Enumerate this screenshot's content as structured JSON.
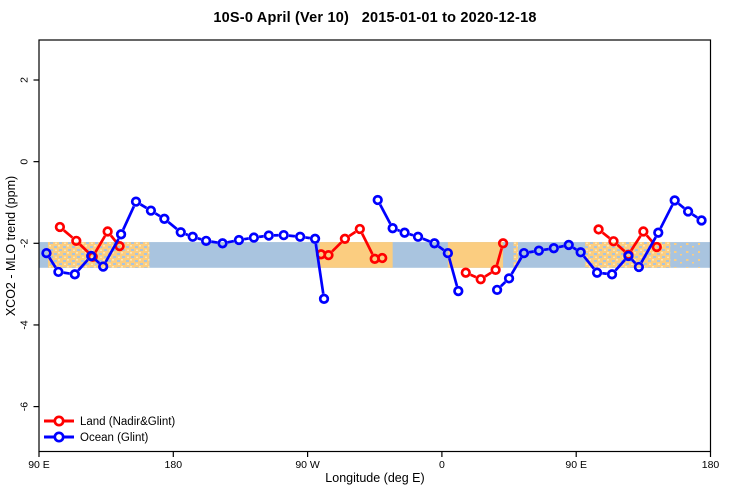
{
  "header": {
    "title": "10S-0 April (Ver 10)   2015-01-01 to 2020-12-18"
  },
  "chart_data": {
    "type": "line",
    "title": "10S-0 April (Ver 10)   2015-01-01 to 2020-12-18",
    "xlabel": "Longitude (deg E)",
    "ylabel": "XCO2 - MLO trend (ppm)",
    "grid": false,
    "legend_position": "bottom-left",
    "x_axis": {
      "min": 90,
      "max": 540,
      "ticks": [
        {
          "lon": 90,
          "label": "90 E"
        },
        {
          "lon": 180,
          "label": "180"
        },
        {
          "lon": 270,
          "label": "90 W"
        },
        {
          "lon": 360,
          "label": "0"
        },
        {
          "lon": 450,
          "label": "90 E"
        },
        {
          "lon": 540,
          "label": "180"
        }
      ]
    },
    "y_axis": {
      "min": -7.1,
      "max": 2.98,
      "ticks": [
        2,
        0,
        -2,
        -4,
        -6
      ]
    },
    "band": {
      "description": "10S-0 latitude strip map: ocean band with land patches",
      "value_top": -1.97,
      "value_bottom": -2.6,
      "ocean_color": "#a9c4df",
      "land_color": "#fbcd80",
      "land_highlight_color": "#fde6b2",
      "land_patches": [
        {
          "from": 96,
          "to": 164,
          "style": "speckled"
        },
        {
          "from": 278,
          "to": 327,
          "style": "solid"
        },
        {
          "from": 364,
          "to": 401,
          "style": "solid"
        },
        {
          "from": 408,
          "to": 411,
          "style": "speckled"
        },
        {
          "from": 456,
          "to": 513,
          "style": "speckled"
        },
        {
          "from": 514,
          "to": 533,
          "style": "sparse"
        }
      ]
    },
    "series": [
      {
        "name": "Land (Nadir&Glint)",
        "color": "#ff0000",
        "segments": [
          [
            [
              104,
              -1.6
            ],
            [
              115,
              -1.94
            ],
            [
              126,
              -2.33
            ],
            [
              136,
              -1.71
            ],
            [
              144,
              -2.07
            ]
          ],
          [
            [
              279,
              -2.27
            ],
            [
              284,
              -2.29
            ],
            [
              295,
              -1.89
            ],
            [
              305,
              -1.65
            ],
            [
              315,
              -2.38
            ],
            [
              320,
              -2.36
            ]
          ],
          [
            [
              376,
              -2.72
            ],
            [
              386,
              -2.88
            ],
            [
              396,
              -2.65
            ],
            [
              401,
              -2.0
            ]
          ],
          [
            [
              465,
              -1.66
            ],
            [
              475,
              -1.95
            ],
            [
              485,
              -2.28
            ],
            [
              495,
              -1.71
            ],
            [
              504,
              -2.09
            ]
          ]
        ]
      },
      {
        "name": "Ocean (Glint)",
        "color": "#0000ff",
        "segments": [
          [
            [
              95,
              -2.24
            ],
            [
              103,
              -2.7
            ],
            [
              114,
              -2.76
            ],
            [
              125,
              -2.31
            ],
            [
              133,
              -2.57
            ],
            [
              145,
              -1.78
            ],
            [
              155,
              -0.98
            ],
            [
              165,
              -1.2
            ],
            [
              174,
              -1.4
            ],
            [
              185,
              -1.73
            ],
            [
              193,
              -1.84
            ],
            [
              202,
              -1.94
            ],
            [
              213,
              -2.0
            ],
            [
              224,
              -1.92
            ],
            [
              234,
              -1.86
            ],
            [
              244,
              -1.81
            ],
            [
              254,
              -1.8
            ],
            [
              265,
              -1.84
            ],
            [
              275,
              -1.89
            ],
            [
              281,
              -3.36
            ]
          ],
          [
            [
              317,
              -0.94
            ],
            [
              327,
              -1.63
            ],
            [
              335,
              -1.74
            ],
            [
              344,
              -1.84
            ],
            [
              355,
              -2.0
            ],
            [
              364,
              -2.24
            ],
            [
              371,
              -3.17
            ]
          ],
          [
            [
              397,
              -3.14
            ],
            [
              405,
              -2.86
            ],
            [
              415,
              -2.24
            ],
            [
              425,
              -2.18
            ],
            [
              435,
              -2.12
            ],
            [
              445,
              -2.04
            ],
            [
              453,
              -2.22
            ],
            [
              464,
              -2.72
            ],
            [
              474,
              -2.76
            ],
            [
              485,
              -2.31
            ],
            [
              492,
              -2.58
            ],
            [
              505,
              -1.74
            ],
            [
              516,
              -0.95
            ],
            [
              525,
              -1.22
            ],
            [
              534,
              -1.44
            ]
          ]
        ]
      }
    ]
  }
}
